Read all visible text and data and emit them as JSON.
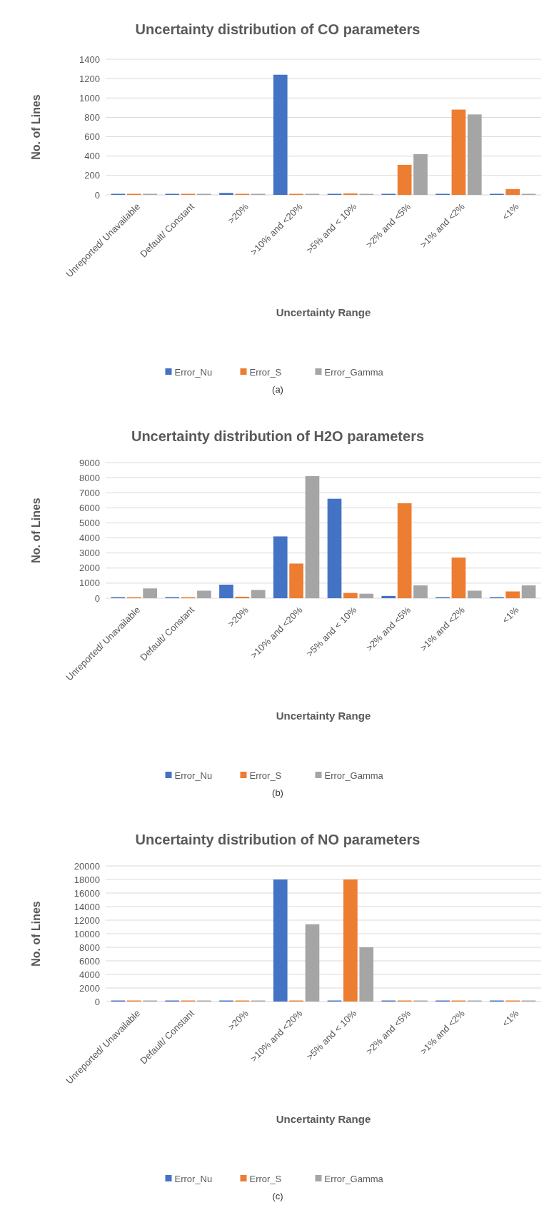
{
  "chart_data": [
    {
      "type": "bar",
      "title": "Uncertainty distribution of CO parameters",
      "xlabel": "Uncertainty Range",
      "ylabel": "No. of Lines",
      "categories": [
        "Unreported/ Unavailable",
        "Default/ Constant",
        ">20%",
        ">10% and <20%",
        ">5% and < 10%",
        ">2% and <5%",
        ">1% and <2%",
        "<1%"
      ],
      "series": [
        {
          "name": "Error_Nu",
          "color": "#4472c4",
          "values": [
            0,
            0,
            20,
            1240,
            0,
            0,
            0,
            5
          ]
        },
        {
          "name": "Error_S",
          "color": "#ed7d31",
          "values": [
            0,
            0,
            5,
            0,
            15,
            310,
            880,
            60
          ]
        },
        {
          "name": "Error_Gamma",
          "color": "#a5a5a5",
          "values": [
            0,
            0,
            0,
            0,
            0,
            420,
            830,
            0
          ]
        }
      ],
      "ylim": [
        0,
        1400
      ],
      "yticks": [
        0,
        200,
        400,
        600,
        800,
        1000,
        1200,
        1400
      ],
      "grid": "y",
      "legend": "bottom",
      "annotations": [
        "(a)"
      ]
    },
    {
      "type": "bar",
      "title": "Uncertainty distribution of H2O parameters",
      "xlabel": "Uncertainty Range",
      "ylabel": "No. of Lines",
      "categories": [
        "Unreported/ Unavailable",
        "Default/ Constant",
        ">20%",
        ">10% and <20%",
        ">5% and < 10%",
        ">2% and <5%",
        ">1% and <2%",
        "<1%"
      ],
      "series": [
        {
          "name": "Error_Nu",
          "color": "#4472c4",
          "values": [
            0,
            0,
            900,
            4100,
            6600,
            150,
            50,
            50
          ]
        },
        {
          "name": "Error_S",
          "color": "#ed7d31",
          "values": [
            0,
            0,
            100,
            2300,
            350,
            6300,
            2700,
            450
          ]
        },
        {
          "name": "Error_Gamma",
          "color": "#a5a5a5",
          "values": [
            650,
            500,
            550,
            8100,
            300,
            850,
            500,
            850
          ]
        }
      ],
      "ylim": [
        0,
        9000
      ],
      "yticks": [
        0,
        1000,
        2000,
        3000,
        4000,
        5000,
        6000,
        7000,
        8000,
        9000
      ],
      "grid": "y",
      "legend": "bottom",
      "annotations": [
        "(b)"
      ]
    },
    {
      "type": "bar",
      "title": "Uncertainty distribution of NO parameters",
      "xlabel": "Uncertainty Range",
      "ylabel": "No. of Lines",
      "categories": [
        "Unreported/ Unavailable",
        "Default/ Constant",
        ">20%",
        ">10% and <20%",
        ">5% and < 10%",
        ">2% and <5%",
        ">1% and <2%",
        "<1%"
      ],
      "series": [
        {
          "name": "Error_Nu",
          "color": "#4472c4",
          "values": [
            0,
            0,
            0,
            18000,
            0,
            0,
            0,
            0
          ]
        },
        {
          "name": "Error_S",
          "color": "#ed7d31",
          "values": [
            0,
            0,
            0,
            0,
            18000,
            0,
            0,
            0
          ]
        },
        {
          "name": "Error_Gamma",
          "color": "#a5a5a5",
          "values": [
            0,
            0,
            0,
            11400,
            8000,
            0,
            0,
            0
          ]
        }
      ],
      "ylim": [
        0,
        20000
      ],
      "yticks": [
        0,
        2000,
        4000,
        6000,
        8000,
        10000,
        12000,
        14000,
        16000,
        18000,
        20000
      ],
      "grid": "y",
      "legend": "bottom",
      "annotations": [
        "(c)"
      ]
    }
  ]
}
